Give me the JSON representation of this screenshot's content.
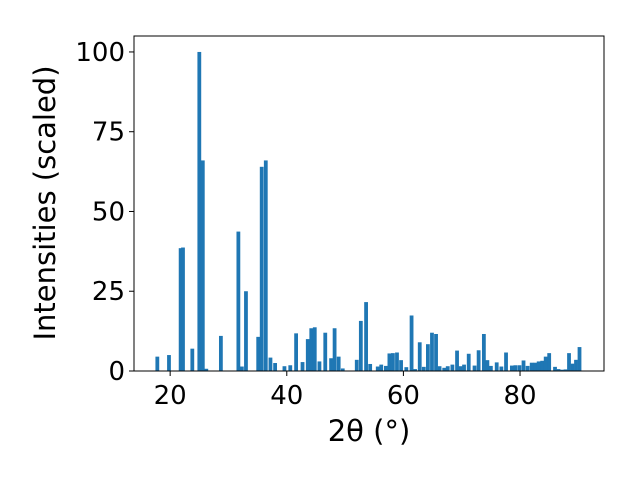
{
  "chart_data": {
    "type": "bar",
    "title": "",
    "xlabel": "2θ (°)",
    "ylabel": "Intensities (scaled)",
    "xlim": [
      13.8,
      94.4
    ],
    "ylim": [
      0,
      105
    ],
    "xticks": [
      20,
      40,
      60,
      80
    ],
    "yticks": [
      0,
      25,
      50,
      75,
      100
    ],
    "bar_width": 0.65,
    "bar_color": "#1f77b4",
    "grid": false,
    "legend": "none",
    "x": [
      17.8,
      19.8,
      21.8,
      22.2,
      23.8,
      25.0,
      25.6,
      26.2,
      28.7,
      31.7,
      32.3,
      33.0,
      35.1,
      35.7,
      36.4,
      37.2,
      38.0,
      39.6,
      40.6,
      41.6,
      42.7,
      43.6,
      44.2,
      44.8,
      45.6,
      46.6,
      47.6,
      48.2,
      48.9,
      49.6,
      52.0,
      52.7,
      53.6,
      54.3,
      55.6,
      56.2,
      57.0,
      57.6,
      58.2,
      58.9,
      59.6,
      60.5,
      61.4,
      62.0,
      62.8,
      63.5,
      64.2,
      64.9,
      65.6,
      66.2,
      67.0,
      67.6,
      68.4,
      69.2,
      69.8,
      70.4,
      71.2,
      72.2,
      72.9,
      73.8,
      74.4,
      75.0,
      76.0,
      76.8,
      77.6,
      78.6,
      79.2,
      79.9,
      80.6,
      81.3,
      82.0,
      82.6,
      83.2,
      83.8,
      84.4,
      85.0,
      86.0,
      86.6,
      87.2,
      87.8,
      88.4,
      89.0,
      89.6,
      90.2
    ],
    "values": [
      4.5,
      5.0,
      38.5,
      38.7,
      7.0,
      100.0,
      66.0,
      0.7,
      11.0,
      43.7,
      1.4,
      25.0,
      10.7,
      64.0,
      66.0,
      4.2,
      2.5,
      1.5,
      1.8,
      11.8,
      2.8,
      10.0,
      13.4,
      13.7,
      3.0,
      12.0,
      4.0,
      13.4,
      4.5,
      0.8,
      3.5,
      15.7,
      21.6,
      2.2,
      1.4,
      2.0,
      1.6,
      5.5,
      5.6,
      5.8,
      3.4,
      1.2,
      17.4,
      0.6,
      9.0,
      1.3,
      8.4,
      12.0,
      11.6,
      1.5,
      1.0,
      1.5,
      2.0,
      6.4,
      1.5,
      2.0,
      5.4,
      1.7,
      6.5,
      11.6,
      3.4,
      1.6,
      2.7,
      1.4,
      5.8,
      1.7,
      1.8,
      1.8,
      3.3,
      1.6,
      2.6,
      2.6,
      3.0,
      3.2,
      4.5,
      5.6,
      1.3,
      0.6,
      0.4,
      0.5,
      5.6,
      2.3,
      3.5,
      7.5
    ]
  }
}
